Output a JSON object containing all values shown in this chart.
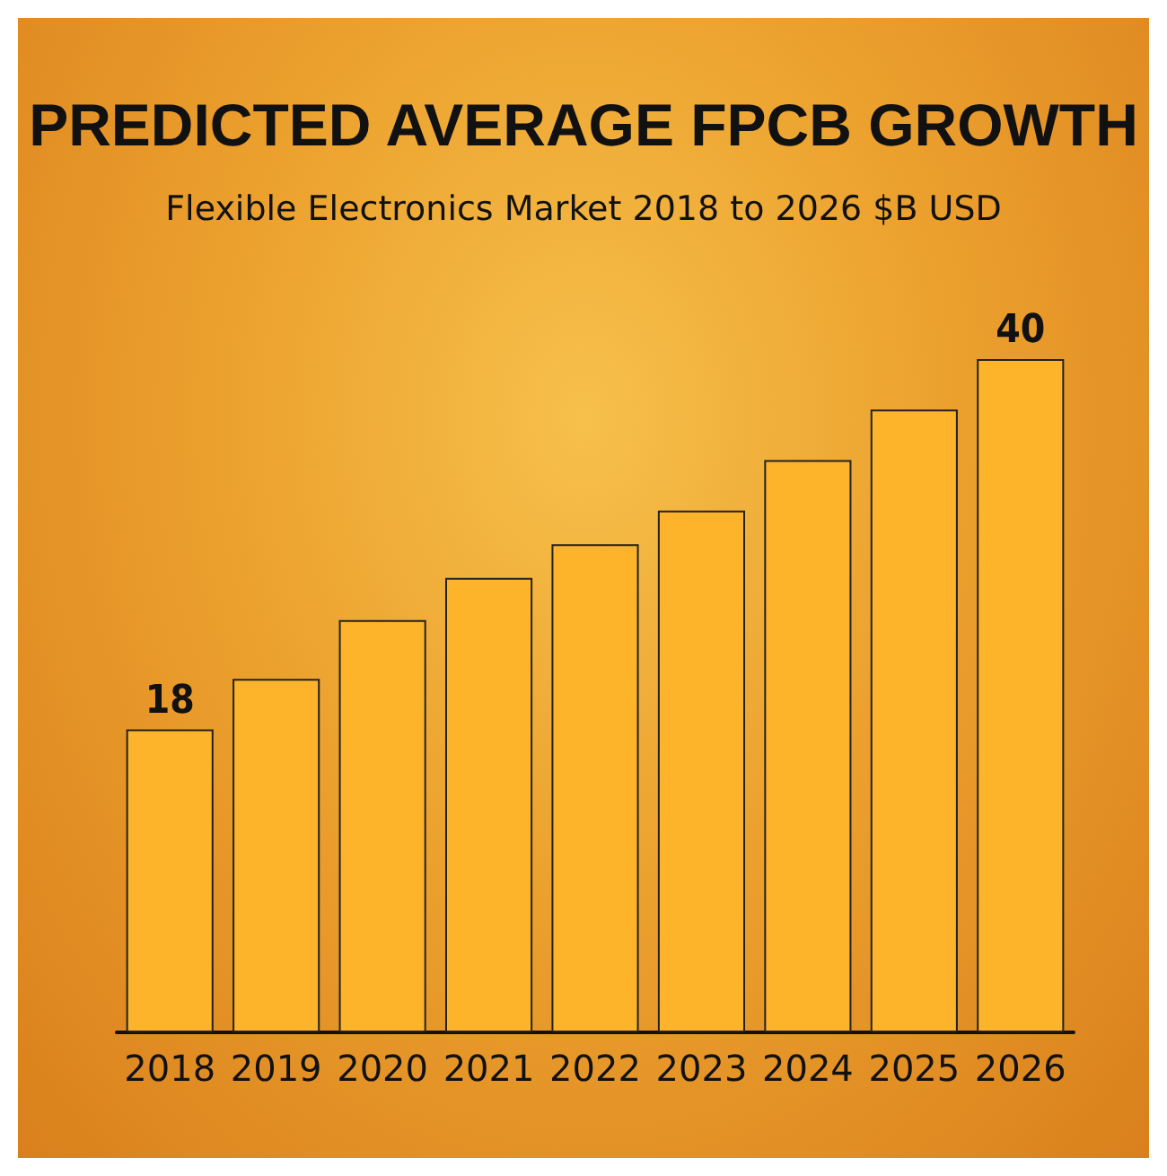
{
  "chart_data": {
    "type": "bar",
    "title": "PREDICTED AVERAGE FPCB GROWTH",
    "subtitle": "Flexible Electronics Market 2018 to 2026 $B USD",
    "categories": [
      "2018",
      "2019",
      "2020",
      "2021",
      "2022",
      "2023",
      "2024",
      "2025",
      "2026"
    ],
    "values": [
      18,
      21,
      24.5,
      27,
      29,
      31,
      34,
      37,
      40
    ],
    "value_labels": [
      "18",
      null,
      null,
      null,
      null,
      null,
      null,
      null,
      "40"
    ],
    "color": "#fdb42a"
  }
}
